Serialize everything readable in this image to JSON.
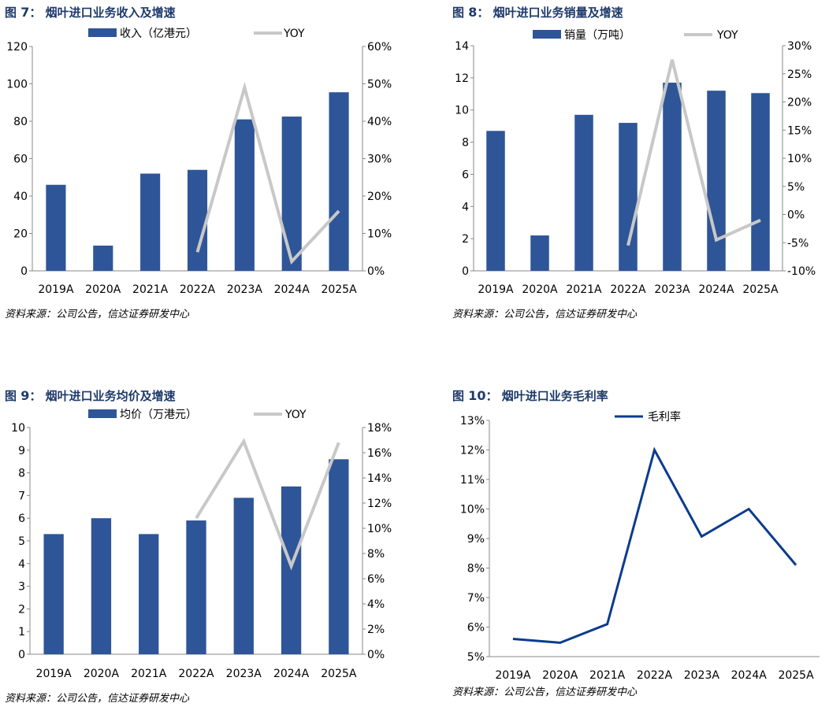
{
  "colors": {
    "bar": "#2e5597",
    "yoy": "#c8c8c8",
    "line": "#0b3c8c",
    "title": "#1f3a6b"
  },
  "chart_data": [
    {
      "type": "bar",
      "fig_label": "图",
      "fig_num": "7",
      "title": "烟叶进口业务收入及增速",
      "categories": [
        "2019A",
        "2020A",
        "2021A",
        "2022A",
        "2023A",
        "2024A",
        "2025A"
      ],
      "series": [
        {
          "name": "收入（亿港元）",
          "type": "bar",
          "axis": "left",
          "values": [
            46,
            13.5,
            52,
            54,
            81,
            82.5,
            95.5
          ]
        },
        {
          "name": "YOY",
          "type": "line",
          "axis": "right",
          "values": [
            null,
            null,
            null,
            5,
            49,
            2.5,
            16
          ]
        }
      ],
      "y_left": {
        "min": 0,
        "max": 120,
        "ticks": [
          "0",
          "20",
          "40",
          "60",
          "80",
          "100",
          "120"
        ]
      },
      "y_right": {
        "min": 0,
        "max": 60,
        "ticks": [
          "0%",
          "10%",
          "20%",
          "30%",
          "40%",
          "50%",
          "60%"
        ]
      },
      "legend_position": "top",
      "source": "资料来源：公司公告，信达证券研发中心"
    },
    {
      "type": "bar",
      "fig_label": "图",
      "fig_num": "8",
      "title": "烟叶进口业务销量及增速",
      "categories": [
        "2019A",
        "2020A",
        "2021A",
        "2022A",
        "2023A",
        "2024A",
        "2025A"
      ],
      "series": [
        {
          "name": "销量（万吨）",
          "type": "bar",
          "axis": "left",
          "values": [
            8.7,
            2.2,
            9.7,
            9.2,
            11.7,
            11.2,
            11.05
          ]
        },
        {
          "name": "YOY",
          "type": "line",
          "axis": "right",
          "values": [
            null,
            null,
            null,
            -5.5,
            27.5,
            -4.5,
            -1
          ]
        }
      ],
      "y_left": {
        "min": 0,
        "max": 14,
        "ticks": [
          "0",
          "2",
          "4",
          "6",
          "8",
          "10",
          "12",
          "14"
        ]
      },
      "y_right": {
        "min": -10,
        "max": 30,
        "ticks": [
          "-10%",
          "-5%",
          "0%",
          "5%",
          "10%",
          "15%",
          "20%",
          "25%",
          "30%"
        ]
      },
      "legend_position": "top",
      "source": "资料来源：公司公告，信达证券研发中心"
    },
    {
      "type": "bar",
      "fig_label": "图",
      "fig_num": "9",
      "title": "烟叶进口业务均价及增速",
      "categories": [
        "2019A",
        "2020A",
        "2021A",
        "2022A",
        "2023A",
        "2024A",
        "2025A"
      ],
      "series": [
        {
          "name": "均价（万港元）",
          "type": "bar",
          "axis": "left",
          "values": [
            5.3,
            6.0,
            5.3,
            5.9,
            6.9,
            7.4,
            8.6
          ]
        },
        {
          "name": "YOY",
          "type": "line",
          "axis": "right",
          "values": [
            null,
            null,
            null,
            10.8,
            16.9,
            7.0,
            16.8
          ]
        }
      ],
      "y_left": {
        "min": 0,
        "max": 10,
        "ticks": [
          "0",
          "1",
          "2",
          "3",
          "4",
          "5",
          "6",
          "7",
          "8",
          "9",
          "10"
        ]
      },
      "y_right": {
        "min": 0,
        "max": 18,
        "ticks": [
          "0%",
          "2%",
          "4%",
          "6%",
          "8%",
          "10%",
          "12%",
          "14%",
          "16%",
          "18%"
        ]
      },
      "legend_position": "top",
      "source": "资料来源：公司公告，信达证券研发中心"
    },
    {
      "type": "line",
      "fig_label": "图",
      "fig_num": "10",
      "title": "烟叶进口业务毛利率",
      "categories": [
        "2019A",
        "2020A",
        "2021A",
        "2022A",
        "2023A",
        "2024A",
        "2025A"
      ],
      "series": [
        {
          "name": "毛利率",
          "type": "line",
          "axis": "left",
          "values": [
            5.6,
            5.47,
            6.1,
            12.0,
            9.07,
            10.0,
            8.1
          ]
        }
      ],
      "y_left": {
        "min": 5,
        "max": 13,
        "ticks": [
          "5%",
          "6%",
          "7%",
          "8%",
          "9%",
          "10%",
          "11%",
          "12%",
          "13%"
        ]
      },
      "legend_position": "top",
      "source": "资料来源：公司公告，信达证券研发中心"
    }
  ]
}
